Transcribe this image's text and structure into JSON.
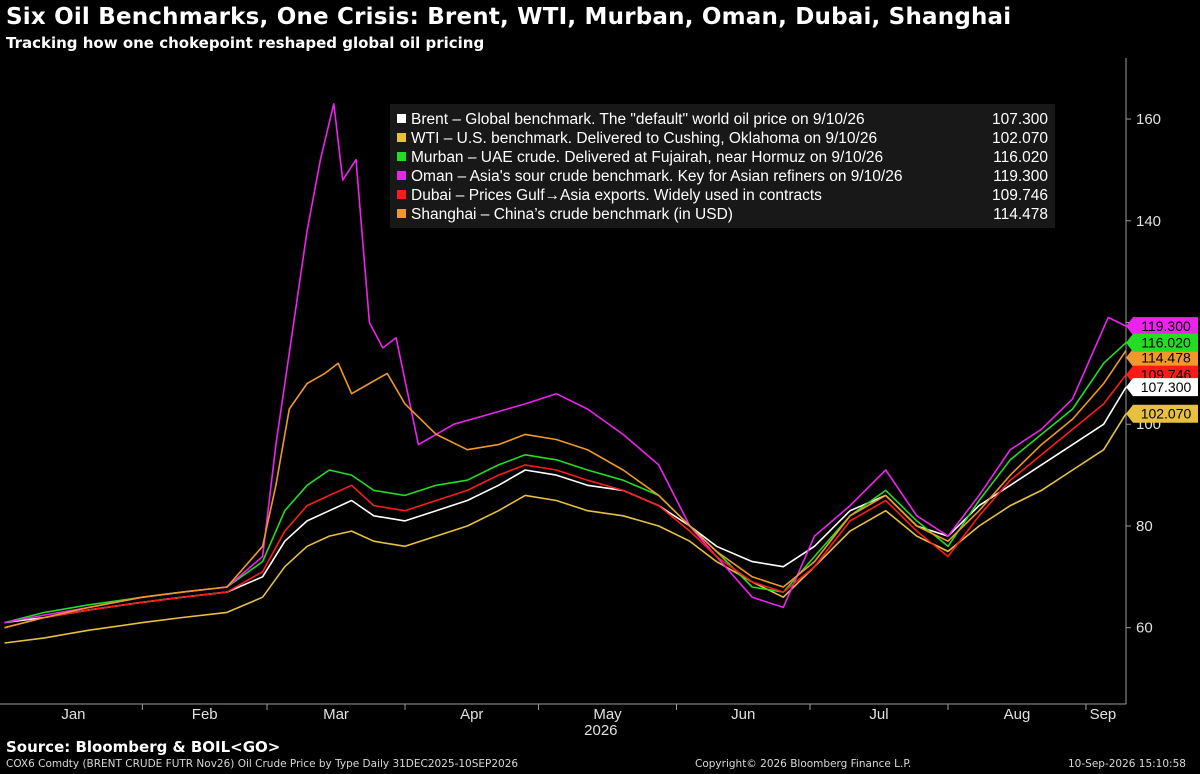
{
  "chart_data": {
    "type": "line",
    "title": "Six Oil Benchmarks, One Crisis: Brent, WTI, Murban, Oman, Dubai, Shanghai",
    "subtitle": "Tracking how one chokepoint reshaped global oil pricing",
    "xlabel": "2026",
    "ylabel": "",
    "x_ticks": [
      "Jan",
      "Feb",
      "Mar",
      "Apr",
      "May",
      "Jun",
      "Jul",
      "Aug",
      "Sep"
    ],
    "y_ticks": [
      60,
      80,
      100,
      120,
      140,
      160
    ],
    "ylim": [
      45,
      172
    ],
    "xlim": [
      "2025-12-31",
      "2026-09-10"
    ],
    "grid": false,
    "legend_position": "top-right",
    "series": [
      {
        "name": "Brent",
        "legend": "Brent – Global benchmark. The \"default\" world oil price on 9/10/26",
        "last_label": "107.300",
        "color": "#ffffff",
        "points": [
          [
            "2026-01-01",
            61
          ],
          [
            "2026-01-10",
            62
          ],
          [
            "2026-01-20",
            63.5
          ],
          [
            "2026-02-01",
            65
          ],
          [
            "2026-02-10",
            66
          ],
          [
            "2026-02-20",
            67
          ],
          [
            "2026-02-28",
            70
          ],
          [
            "2026-03-05",
            77
          ],
          [
            "2026-03-10",
            81
          ],
          [
            "2026-03-15",
            83
          ],
          [
            "2026-03-20",
            85
          ],
          [
            "2026-03-25",
            82
          ],
          [
            "2026-04-01",
            81
          ],
          [
            "2026-04-08",
            83
          ],
          [
            "2026-04-15",
            85
          ],
          [
            "2026-04-22",
            88
          ],
          [
            "2026-04-28",
            91
          ],
          [
            "2026-05-05",
            90
          ],
          [
            "2026-05-12",
            88
          ],
          [
            "2026-05-20",
            87
          ],
          [
            "2026-05-28",
            84
          ],
          [
            "2026-06-04",
            80
          ],
          [
            "2026-06-10",
            76
          ],
          [
            "2026-06-18",
            73
          ],
          [
            "2026-06-25",
            72
          ],
          [
            "2026-07-02",
            76
          ],
          [
            "2026-07-10",
            83
          ],
          [
            "2026-07-18",
            86
          ],
          [
            "2026-07-25",
            80
          ],
          [
            "2026-08-01",
            78
          ],
          [
            "2026-08-08",
            84
          ],
          [
            "2026-08-15",
            88
          ],
          [
            "2026-08-22",
            92
          ],
          [
            "2026-08-29",
            96
          ],
          [
            "2026-09-05",
            100
          ],
          [
            "2026-09-10",
            107.3
          ]
        ]
      },
      {
        "name": "WTI",
        "legend": "WTI – U.S. benchmark. Delivered to Cushing, Oklahoma on 9/10/26",
        "last_label": "102.070",
        "color": "#e8c040",
        "points": [
          [
            "2026-01-01",
            57
          ],
          [
            "2026-01-10",
            58
          ],
          [
            "2026-01-20",
            59.5
          ],
          [
            "2026-02-01",
            61
          ],
          [
            "2026-02-10",
            62
          ],
          [
            "2026-02-20",
            63
          ],
          [
            "2026-02-28",
            66
          ],
          [
            "2026-03-05",
            72
          ],
          [
            "2026-03-10",
            76
          ],
          [
            "2026-03-15",
            78
          ],
          [
            "2026-03-20",
            79
          ],
          [
            "2026-03-25",
            77
          ],
          [
            "2026-04-01",
            76
          ],
          [
            "2026-04-08",
            78
          ],
          [
            "2026-04-15",
            80
          ],
          [
            "2026-04-22",
            83
          ],
          [
            "2026-04-28",
            86
          ],
          [
            "2026-05-05",
            85
          ],
          [
            "2026-05-12",
            83
          ],
          [
            "2026-05-20",
            82
          ],
          [
            "2026-05-28",
            80
          ],
          [
            "2026-06-04",
            77
          ],
          [
            "2026-06-10",
            73
          ],
          [
            "2026-06-18",
            69
          ],
          [
            "2026-06-25",
            66
          ],
          [
            "2026-07-02",
            72
          ],
          [
            "2026-07-10",
            79
          ],
          [
            "2026-07-18",
            83
          ],
          [
            "2026-07-25",
            78
          ],
          [
            "2026-08-01",
            75
          ],
          [
            "2026-08-08",
            80
          ],
          [
            "2026-08-15",
            84
          ],
          [
            "2026-08-22",
            87
          ],
          [
            "2026-08-29",
            91
          ],
          [
            "2026-09-05",
            95
          ],
          [
            "2026-09-10",
            102.07
          ]
        ]
      },
      {
        "name": "Murban",
        "legend": "Murban – UAE crude. Delivered at Fujairah, near Hormuz on 9/10/26",
        "last_label": "116.020",
        "color": "#22dd22",
        "points": [
          [
            "2026-01-01",
            61
          ],
          [
            "2026-01-10",
            63
          ],
          [
            "2026-01-20",
            64.5
          ],
          [
            "2026-02-01",
            66
          ],
          [
            "2026-02-10",
            67
          ],
          [
            "2026-02-20",
            68
          ],
          [
            "2026-02-28",
            73
          ],
          [
            "2026-03-05",
            83
          ],
          [
            "2026-03-10",
            88
          ],
          [
            "2026-03-15",
            91
          ],
          [
            "2026-03-20",
            90
          ],
          [
            "2026-03-25",
            87
          ],
          [
            "2026-04-01",
            86
          ],
          [
            "2026-04-08",
            88
          ],
          [
            "2026-04-15",
            89
          ],
          [
            "2026-04-22",
            92
          ],
          [
            "2026-04-28",
            94
          ],
          [
            "2026-05-05",
            93
          ],
          [
            "2026-05-12",
            91
          ],
          [
            "2026-05-20",
            89
          ],
          [
            "2026-05-28",
            86
          ],
          [
            "2026-06-04",
            80
          ],
          [
            "2026-06-10",
            75
          ],
          [
            "2026-06-18",
            68
          ],
          [
            "2026-06-25",
            67
          ],
          [
            "2026-07-02",
            74
          ],
          [
            "2026-07-10",
            82
          ],
          [
            "2026-07-18",
            87
          ],
          [
            "2026-07-25",
            81
          ],
          [
            "2026-08-01",
            76
          ],
          [
            "2026-08-08",
            85
          ],
          [
            "2026-08-15",
            93
          ],
          [
            "2026-08-22",
            98
          ],
          [
            "2026-08-29",
            103
          ],
          [
            "2026-09-05",
            112
          ],
          [
            "2026-09-10",
            116.02
          ]
        ]
      },
      {
        "name": "Oman",
        "legend": "Oman – Asia's sour crude benchmark. Key for Asian refiners on 9/10/26",
        "last_label": "119.300",
        "color": "#ee22ee",
        "points": [
          [
            "2026-01-01",
            61
          ],
          [
            "2026-01-10",
            62.5
          ],
          [
            "2026-01-20",
            64
          ],
          [
            "2026-02-01",
            66
          ],
          [
            "2026-02-10",
            67
          ],
          [
            "2026-02-20",
            68
          ],
          [
            "2026-02-28",
            74
          ],
          [
            "2026-03-03",
            96
          ],
          [
            "2026-03-06",
            114
          ],
          [
            "2026-03-10",
            138
          ],
          [
            "2026-03-13",
            152
          ],
          [
            "2026-03-16",
            163
          ],
          [
            "2026-03-18",
            148
          ],
          [
            "2026-03-21",
            152
          ],
          [
            "2026-03-24",
            120
          ],
          [
            "2026-03-27",
            115
          ],
          [
            "2026-03-30",
            117
          ],
          [
            "2026-04-04",
            96
          ],
          [
            "2026-04-12",
            100
          ],
          [
            "2026-04-20",
            102
          ],
          [
            "2026-04-28",
            104
          ],
          [
            "2026-05-05",
            106
          ],
          [
            "2026-05-12",
            103
          ],
          [
            "2026-05-20",
            98
          ],
          [
            "2026-05-28",
            92
          ],
          [
            "2026-06-04",
            80
          ],
          [
            "2026-06-10",
            74
          ],
          [
            "2026-06-18",
            66
          ],
          [
            "2026-06-25",
            64
          ],
          [
            "2026-07-02",
            78
          ],
          [
            "2026-07-10",
            84
          ],
          [
            "2026-07-18",
            91
          ],
          [
            "2026-07-25",
            82
          ],
          [
            "2026-08-01",
            78
          ],
          [
            "2026-08-08",
            86
          ],
          [
            "2026-08-15",
            95
          ],
          [
            "2026-08-22",
            99
          ],
          [
            "2026-08-29",
            105
          ],
          [
            "2026-09-06",
            121
          ],
          [
            "2026-09-10",
            119.3
          ]
        ]
      },
      {
        "name": "Dubai",
        "legend": "Dubai – Prices Gulf→Asia exports. Widely used in contracts",
        "last_label": "109.746",
        "color": "#ff1a1a",
        "points": [
          [
            "2026-01-01",
            60
          ],
          [
            "2026-01-10",
            62
          ],
          [
            "2026-01-20",
            63.5
          ],
          [
            "2026-02-01",
            65
          ],
          [
            "2026-02-10",
            66
          ],
          [
            "2026-02-20",
            67
          ],
          [
            "2026-02-28",
            71
          ],
          [
            "2026-03-05",
            79
          ],
          [
            "2026-03-10",
            84
          ],
          [
            "2026-03-15",
            86
          ],
          [
            "2026-03-20",
            88
          ],
          [
            "2026-03-25",
            84
          ],
          [
            "2026-04-01",
            83
          ],
          [
            "2026-04-08",
            85
          ],
          [
            "2026-04-15",
            87
          ],
          [
            "2026-04-22",
            90
          ],
          [
            "2026-04-28",
            92
          ],
          [
            "2026-05-05",
            91
          ],
          [
            "2026-05-12",
            89
          ],
          [
            "2026-05-20",
            87
          ],
          [
            "2026-05-28",
            84
          ],
          [
            "2026-06-04",
            79
          ],
          [
            "2026-06-10",
            74
          ],
          [
            "2026-06-18",
            69
          ],
          [
            "2026-06-25",
            67
          ],
          [
            "2026-07-02",
            72
          ],
          [
            "2026-07-10",
            81
          ],
          [
            "2026-07-18",
            85
          ],
          [
            "2026-07-25",
            79
          ],
          [
            "2026-08-01",
            74
          ],
          [
            "2026-08-08",
            82
          ],
          [
            "2026-08-15",
            89
          ],
          [
            "2026-08-22",
            94
          ],
          [
            "2026-08-29",
            99
          ],
          [
            "2026-09-05",
            104
          ],
          [
            "2026-09-10",
            109.746
          ]
        ]
      },
      {
        "name": "Shanghai",
        "legend": "Shanghai – China’s crude benchmark (in USD)",
        "last_label": "114.478",
        "color": "#f0982a",
        "points": [
          [
            "2026-01-01",
            60
          ],
          [
            "2026-01-10",
            62
          ],
          [
            "2026-01-20",
            64
          ],
          [
            "2026-02-01",
            66
          ],
          [
            "2026-02-10",
            67
          ],
          [
            "2026-02-20",
            68
          ],
          [
            "2026-02-28",
            76
          ],
          [
            "2026-03-03",
            88
          ],
          [
            "2026-03-06",
            103
          ],
          [
            "2026-03-10",
            108
          ],
          [
            "2026-03-14",
            110
          ],
          [
            "2026-03-17",
            112
          ],
          [
            "2026-03-20",
            106
          ],
          [
            "2026-03-24",
            108
          ],
          [
            "2026-03-28",
            110
          ],
          [
            "2026-04-01",
            104
          ],
          [
            "2026-04-08",
            98
          ],
          [
            "2026-04-15",
            95
          ],
          [
            "2026-04-22",
            96
          ],
          [
            "2026-04-28",
            98
          ],
          [
            "2026-05-05",
            97
          ],
          [
            "2026-05-12",
            95
          ],
          [
            "2026-05-20",
            91
          ],
          [
            "2026-05-28",
            86
          ],
          [
            "2026-06-04",
            80
          ],
          [
            "2026-06-10",
            75
          ],
          [
            "2026-06-18",
            70
          ],
          [
            "2026-06-25",
            68
          ],
          [
            "2026-07-02",
            73
          ],
          [
            "2026-07-10",
            82
          ],
          [
            "2026-07-18",
            86
          ],
          [
            "2026-07-25",
            80
          ],
          [
            "2026-08-01",
            77
          ],
          [
            "2026-08-08",
            83
          ],
          [
            "2026-08-15",
            90
          ],
          [
            "2026-08-22",
            96
          ],
          [
            "2026-08-29",
            101
          ],
          [
            "2026-09-05",
            108
          ],
          [
            "2026-09-10",
            114.478
          ]
        ]
      }
    ]
  },
  "footer": {
    "source": "Source: Bloomberg & BOIL<GO>",
    "ticker": "COX6 Comdty (BRENT CRUDE FUTR  Nov26) Oil Crude Price by Type Daily 31DEC2025-10SEP2026",
    "copyright": "Copyright© 2026 Bloomberg Finance L.P.",
    "timestamp": "10-Sep-2026 15:10:58"
  }
}
